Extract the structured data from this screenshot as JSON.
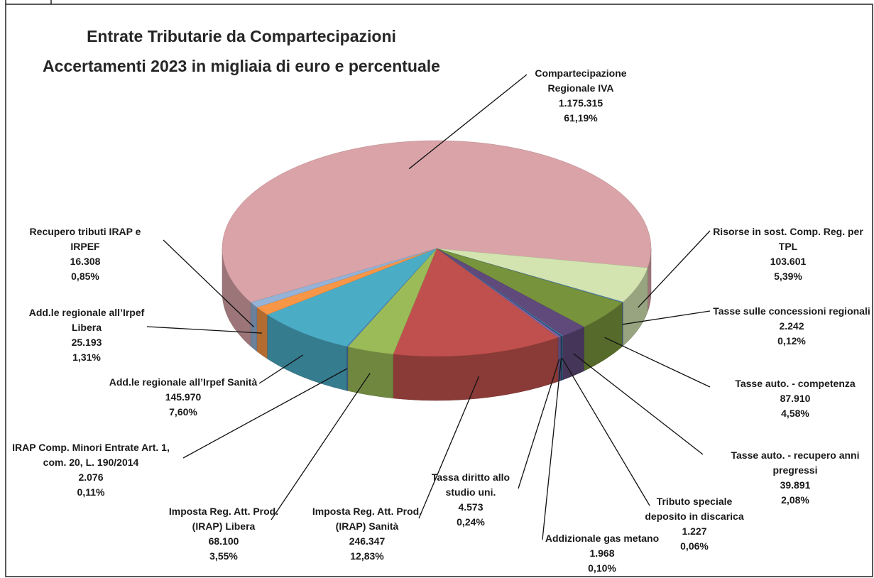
{
  "chart_data": {
    "type": "pie3d",
    "title": [
      "Entrate Tributarie da Compartecipazioni",
      "Accertamenti 2023 in migliaia di euro e percentuale"
    ],
    "categories": [
      "Compartecipazione Regionale IVA",
      "Risorse in sost. Comp. Reg. per TPL",
      "Tasse sulle concessioni regionali",
      "Tasse auto. - competenza",
      "Tasse auto. - recupero anni pregressi",
      "Tributo speciale deposito in discarica",
      "Addizionale gas metano",
      "Tassa diritto allo studio uni.",
      "Imposta Reg. Att. Prod. (IRAP) Sanità",
      "Imposta Reg. Att. Prod. (IRAP) Libera",
      "IRAP Comp. Minori Entrate Art. 1, com. 20, L. 190/2014",
      "Add.le regionale all’Irpef Sanità",
      "Add.le regionale all’Irpef Libera",
      "Recupero tributi IRAP e IRPEF"
    ],
    "values": [
      1175315,
      103601,
      2242,
      87910,
      39891,
      1227,
      1968,
      4573,
      246347,
      68100,
      2076,
      145970,
      25193,
      16308
    ],
    "value_labels": [
      "1.175.315",
      "103.601",
      "2.242",
      "87.910",
      "39.891",
      "1.227",
      "1.968",
      "4.573",
      "246.347",
      "68.100",
      "2.076",
      "145.970",
      "25.193",
      "16.308"
    ],
    "percentages": [
      61.19,
      5.39,
      0.12,
      4.58,
      2.08,
      0.06,
      0.1,
      0.24,
      12.83,
      3.55,
      0.11,
      7.6,
      1.31,
      0.85
    ],
    "percentage_labels": [
      "61,19%",
      "5,39%",
      "0,12%",
      "4,58%",
      "2,08%",
      "0,06%",
      "0,10%",
      "0,24%",
      "12,83%",
      "3,55%",
      "0,11%",
      "7,60%",
      "1,31%",
      "0,85%"
    ],
    "colors": [
      "#d9a3a8",
      "#d3e4b0",
      "#4f81bd",
      "#77933c",
      "#604a7b",
      "#4bacc6",
      "#1f497d",
      "#8064a2",
      "#c0504d",
      "#9bbb59",
      "#4f81bd",
      "#4bacc6",
      "#f79646",
      "#95b3d7"
    ]
  }
}
